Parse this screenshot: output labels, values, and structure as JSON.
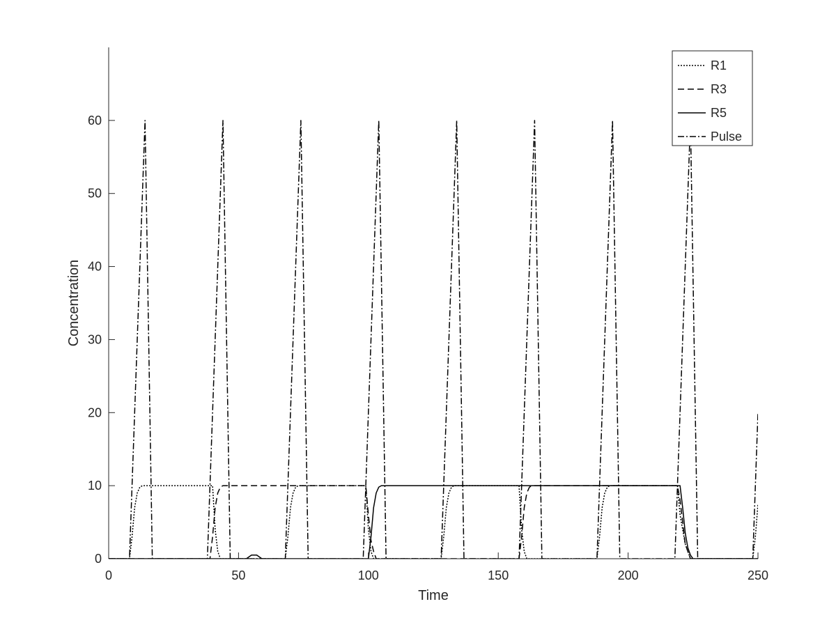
{
  "chart_data": {
    "type": "line",
    "title": "",
    "xlabel": "Time",
    "ylabel": "Concentration",
    "xlim": [
      0,
      250
    ],
    "ylim": [
      0,
      70
    ],
    "xticks": [
      0,
      50,
      100,
      150,
      200,
      250
    ],
    "yticks": [
      0,
      10,
      20,
      30,
      40,
      50,
      60
    ],
    "grid": false,
    "legend_position": "top-right",
    "series": [
      {
        "name": "R1",
        "style": "dotted",
        "color": "#000000",
        "points": [
          [
            0,
            0
          ],
          [
            8,
            0
          ],
          [
            9,
            3
          ],
          [
            10,
            7
          ],
          [
            11,
            9
          ],
          [
            12,
            9.8
          ],
          [
            13,
            10
          ],
          [
            40,
            10
          ],
          [
            41,
            4
          ],
          [
            42,
            1
          ],
          [
            43,
            0
          ],
          [
            68,
            0
          ],
          [
            69,
            3
          ],
          [
            70,
            7
          ],
          [
            71,
            9
          ],
          [
            72,
            9.8
          ],
          [
            73,
            10
          ],
          [
            99,
            10
          ],
          [
            100,
            4
          ],
          [
            101,
            1
          ],
          [
            102,
            0
          ],
          [
            128,
            0
          ],
          [
            129,
            3
          ],
          [
            130,
            7
          ],
          [
            131,
            9
          ],
          [
            132,
            9.8
          ],
          [
            133,
            10
          ],
          [
            158,
            10
          ],
          [
            159,
            4
          ],
          [
            160,
            1
          ],
          [
            161,
            0
          ],
          [
            188,
            0
          ],
          [
            189,
            3
          ],
          [
            190,
            7
          ],
          [
            191,
            9
          ],
          [
            192,
            9.8
          ],
          [
            193,
            10
          ],
          [
            219,
            10
          ],
          [
            220,
            6
          ],
          [
            222,
            2
          ],
          [
            224,
            0
          ],
          [
            248,
            0
          ],
          [
            249,
            3
          ],
          [
            250,
            7.5
          ]
        ]
      },
      {
        "name": "R3",
        "style": "dashed",
        "color": "#000000",
        "points": [
          [
            0,
            0
          ],
          [
            39,
            0
          ],
          [
            40,
            3
          ],
          [
            41,
            7
          ],
          [
            42,
            9
          ],
          [
            43,
            9.8
          ],
          [
            44,
            10
          ],
          [
            99,
            10
          ],
          [
            100,
            6
          ],
          [
            101,
            2.5
          ],
          [
            102,
            1
          ],
          [
            103,
            0
          ],
          [
            158,
            0
          ],
          [
            159,
            3
          ],
          [
            160,
            7
          ],
          [
            161,
            9
          ],
          [
            162,
            9.8
          ],
          [
            163,
            10
          ],
          [
            219,
            10
          ],
          [
            220,
            8
          ],
          [
            221,
            5
          ],
          [
            222,
            2
          ],
          [
            224,
            0
          ],
          [
            250,
            0
          ]
        ]
      },
      {
        "name": "R5",
        "style": "solid",
        "color": "#000000",
        "points": [
          [
            0,
            0
          ],
          [
            53,
            0
          ],
          [
            55,
            0.5
          ],
          [
            57,
            0.5
          ],
          [
            59,
            0
          ],
          [
            100,
            0
          ],
          [
            101,
            3
          ],
          [
            102,
            7
          ],
          [
            103,
            9
          ],
          [
            104,
            9.8
          ],
          [
            105,
            10
          ],
          [
            220,
            10
          ],
          [
            221,
            7
          ],
          [
            222,
            3.5
          ],
          [
            223,
            1.5
          ],
          [
            224,
            0.5
          ],
          [
            225,
            0
          ],
          [
            250,
            0
          ]
        ]
      },
      {
        "name": "Pulse",
        "style": "dashdot",
        "color": "#000000",
        "points": [
          [
            0,
            0
          ],
          [
            8,
            0
          ],
          [
            14,
            60
          ],
          [
            16.8,
            0
          ],
          [
            16.9,
            0
          ],
          [
            38,
            0
          ],
          [
            44,
            60
          ],
          [
            46.8,
            0
          ],
          [
            46.9,
            0
          ],
          [
            68,
            0
          ],
          [
            74,
            60
          ],
          [
            76.8,
            0
          ],
          [
            76.9,
            0
          ],
          [
            98,
            0
          ],
          [
            104,
            60
          ],
          [
            106.8,
            0
          ],
          [
            106.9,
            0
          ],
          [
            128,
            0
          ],
          [
            134,
            60
          ],
          [
            136.8,
            0
          ],
          [
            136.9,
            0
          ],
          [
            158,
            0
          ],
          [
            164,
            60
          ],
          [
            166.8,
            0
          ],
          [
            166.9,
            0
          ],
          [
            188,
            0
          ],
          [
            194,
            60
          ],
          [
            196.8,
            0
          ],
          [
            196.9,
            0
          ],
          [
            218,
            0
          ],
          [
            224,
            60
          ],
          [
            226.8,
            0
          ],
          [
            226.9,
            0
          ],
          [
            248,
            0
          ],
          [
            250,
            20
          ]
        ]
      }
    ]
  }
}
